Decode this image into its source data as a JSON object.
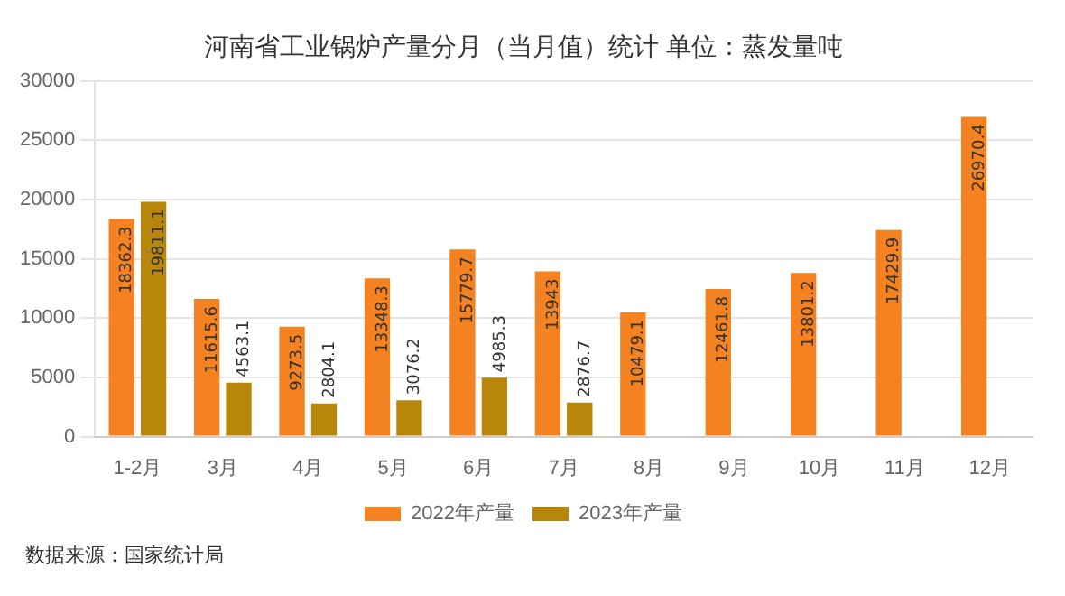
{
  "chart_data": {
    "type": "bar",
    "title": "河南省工业锅炉产量分月（当月值）统计 单位：蒸发量吨",
    "categories": [
      "1-2月",
      "3月",
      "4月",
      "5月",
      "6月",
      "7月",
      "8月",
      "9月",
      "10月",
      "11月",
      "12月"
    ],
    "series": [
      {
        "name": "2022年产量",
        "color": "#f58220",
        "values": [
          18362.3,
          11615.6,
          9273.5,
          13348.3,
          15779.7,
          13943,
          10479.1,
          12461.8,
          13801.2,
          17429.9,
          26970.4
        ]
      },
      {
        "name": "2023年产量",
        "color": "#b8860b",
        "values": [
          19811.1,
          4563.1,
          2804.1,
          3076.2,
          4985.3,
          2876.7,
          null,
          null,
          null,
          null,
          null
        ]
      }
    ],
    "ylim": [
      0,
      30000
    ],
    "yticks": [
      0,
      5000,
      10000,
      15000,
      20000,
      25000,
      30000
    ],
    "grid": "y",
    "legend": "bottom",
    "data_labels": true,
    "annotations": [
      "数据来源：国家统计局"
    ]
  }
}
